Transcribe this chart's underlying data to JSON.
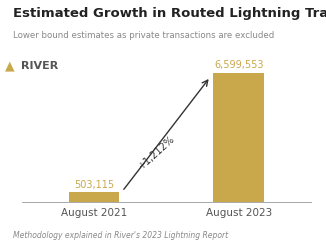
{
  "title": "Estimated Growth in Routed Lightning Transactions",
  "subtitle": "Lower bound estimates as private transactions are excluded",
  "footnote": "Methodology explained in River's 2023 Lightning Report",
  "categories": [
    "August 2021",
    "August 2023"
  ],
  "values": [
    503115,
    6599553
  ],
  "value_labels": [
    "503,115",
    "6,599,553"
  ],
  "bar_color": "#C9A84C",
  "background_color": "#FFFFFF",
  "arrow_label": "+1,212%",
  "logo_text": "RIVER",
  "title_fontsize": 9.5,
  "subtitle_fontsize": 6.2,
  "footnote_fontsize": 5.5,
  "bar_label_fontsize": 7,
  "arrow_label_fontsize": 7,
  "xlabel_fontsize": 7.5,
  "logo_fontsize": 8
}
